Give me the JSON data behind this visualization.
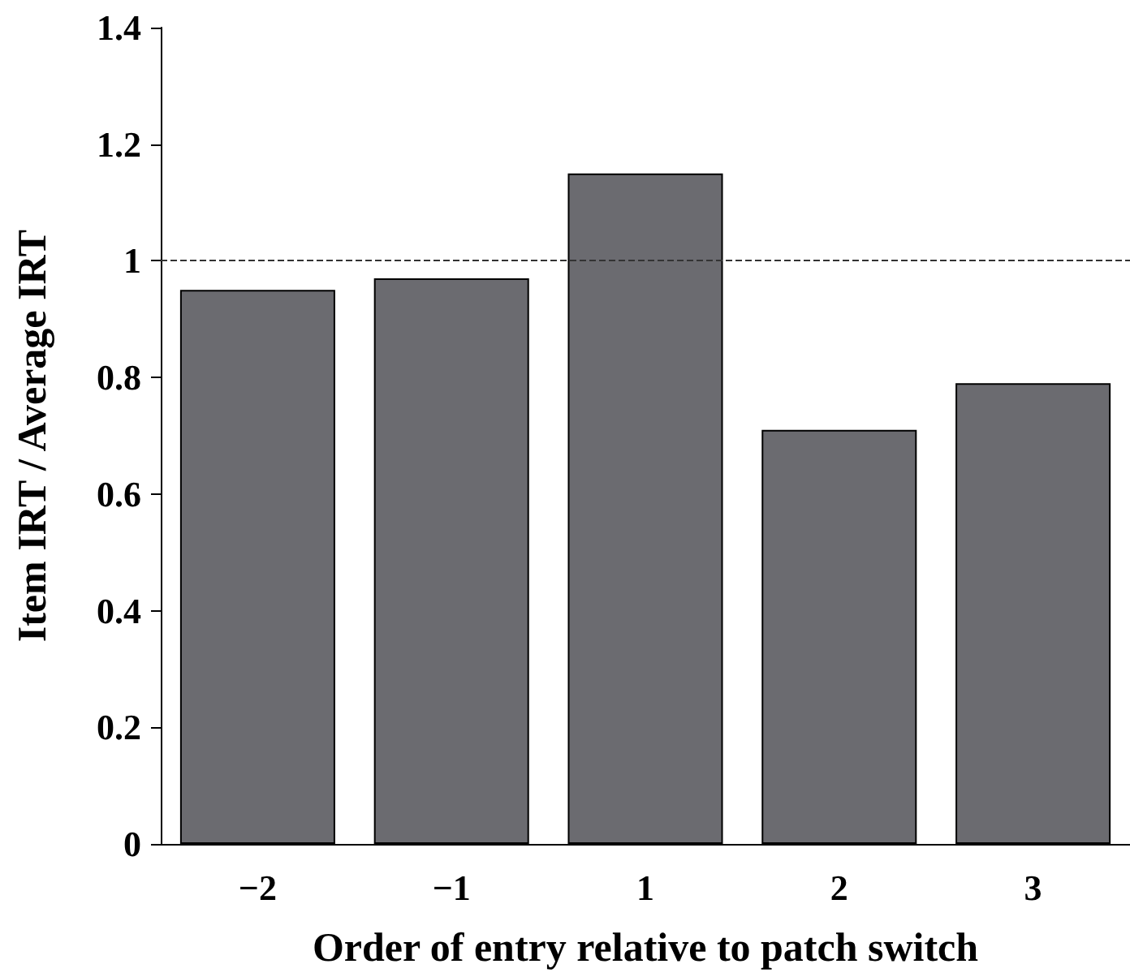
{
  "chart_data": {
    "type": "bar",
    "xlabel": "Order of entry relative to patch switch",
    "ylabel": "Item IRT / Average IRT",
    "categories": [
      "−2",
      "−1",
      "1",
      "2",
      "3"
    ],
    "values": [
      0.95,
      0.97,
      1.15,
      0.71,
      0.79
    ],
    "color": "#6b6b70",
    "ylim": [
      0,
      1.4
    ],
    "yticks": [
      0,
      0.2,
      0.4,
      0.6,
      0.8,
      1,
      1.2,
      1.4
    ],
    "ref_lines": [
      {
        "axis": "y",
        "value": 1,
        "color": "#333333",
        "line_style": "dashed"
      }
    ]
  }
}
